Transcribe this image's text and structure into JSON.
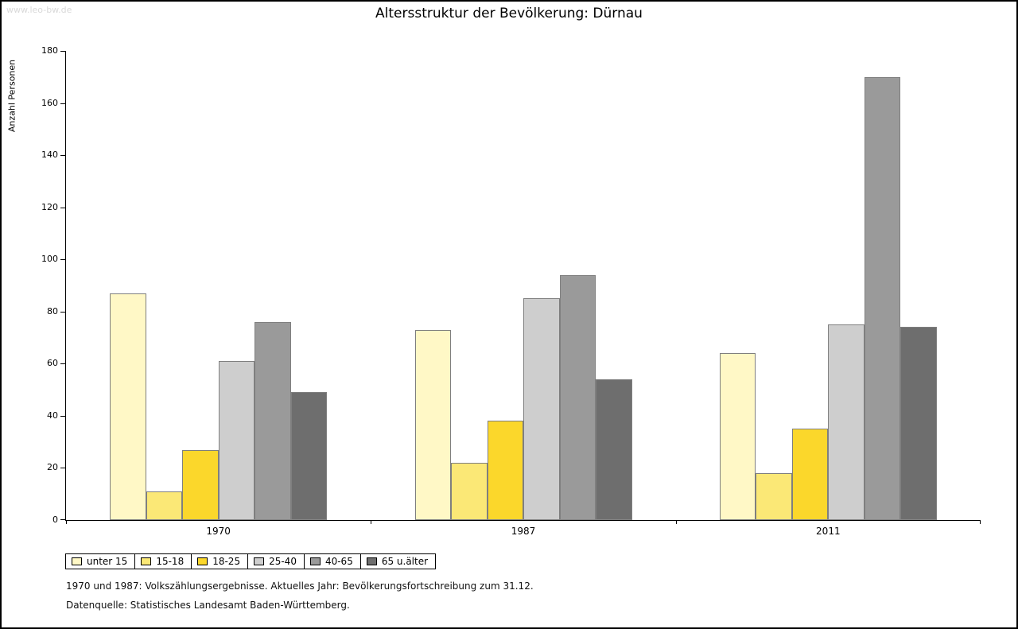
{
  "watermark": "www.leo-bw.de",
  "title": "Altersstruktur der Bevölkerung: Dürnau",
  "chart_data": {
    "type": "bar",
    "title": "Altersstruktur der Bevölkerung: Dürnau",
    "xlabel": "",
    "ylabel": "Anzahl Personen",
    "ylim": [
      0,
      180
    ],
    "ytick_step": 20,
    "grid": false,
    "legend_position": "bottom-left",
    "categories": [
      "1970",
      "1987",
      "2011"
    ],
    "series": [
      {
        "name": "unter 15",
        "color": "#FFF8C6",
        "values": [
          87,
          73,
          64
        ]
      },
      {
        "name": "15-18",
        "color": "#FBE876",
        "values": [
          11,
          22,
          18
        ]
      },
      {
        "name": "18-25",
        "color": "#FBD72B",
        "values": [
          27,
          38,
          35
        ]
      },
      {
        "name": "25-40",
        "color": "#CECECE",
        "values": [
          61,
          85,
          75
        ]
      },
      {
        "name": "40-65",
        "color": "#9A9A9A",
        "values": [
          76,
          94,
          170
        ]
      },
      {
        "name": "65 u.älter",
        "color": "#6E6E6E",
        "values": [
          49,
          54,
          74
        ]
      }
    ]
  },
  "footnotes": [
    "1970 und 1987: Volkszählungsergebnisse. Aktuelles Jahr: Bevölkerungsfortschreibung zum 31.12.",
    "Datenquelle: Statistisches Landesamt Baden-Württemberg."
  ]
}
